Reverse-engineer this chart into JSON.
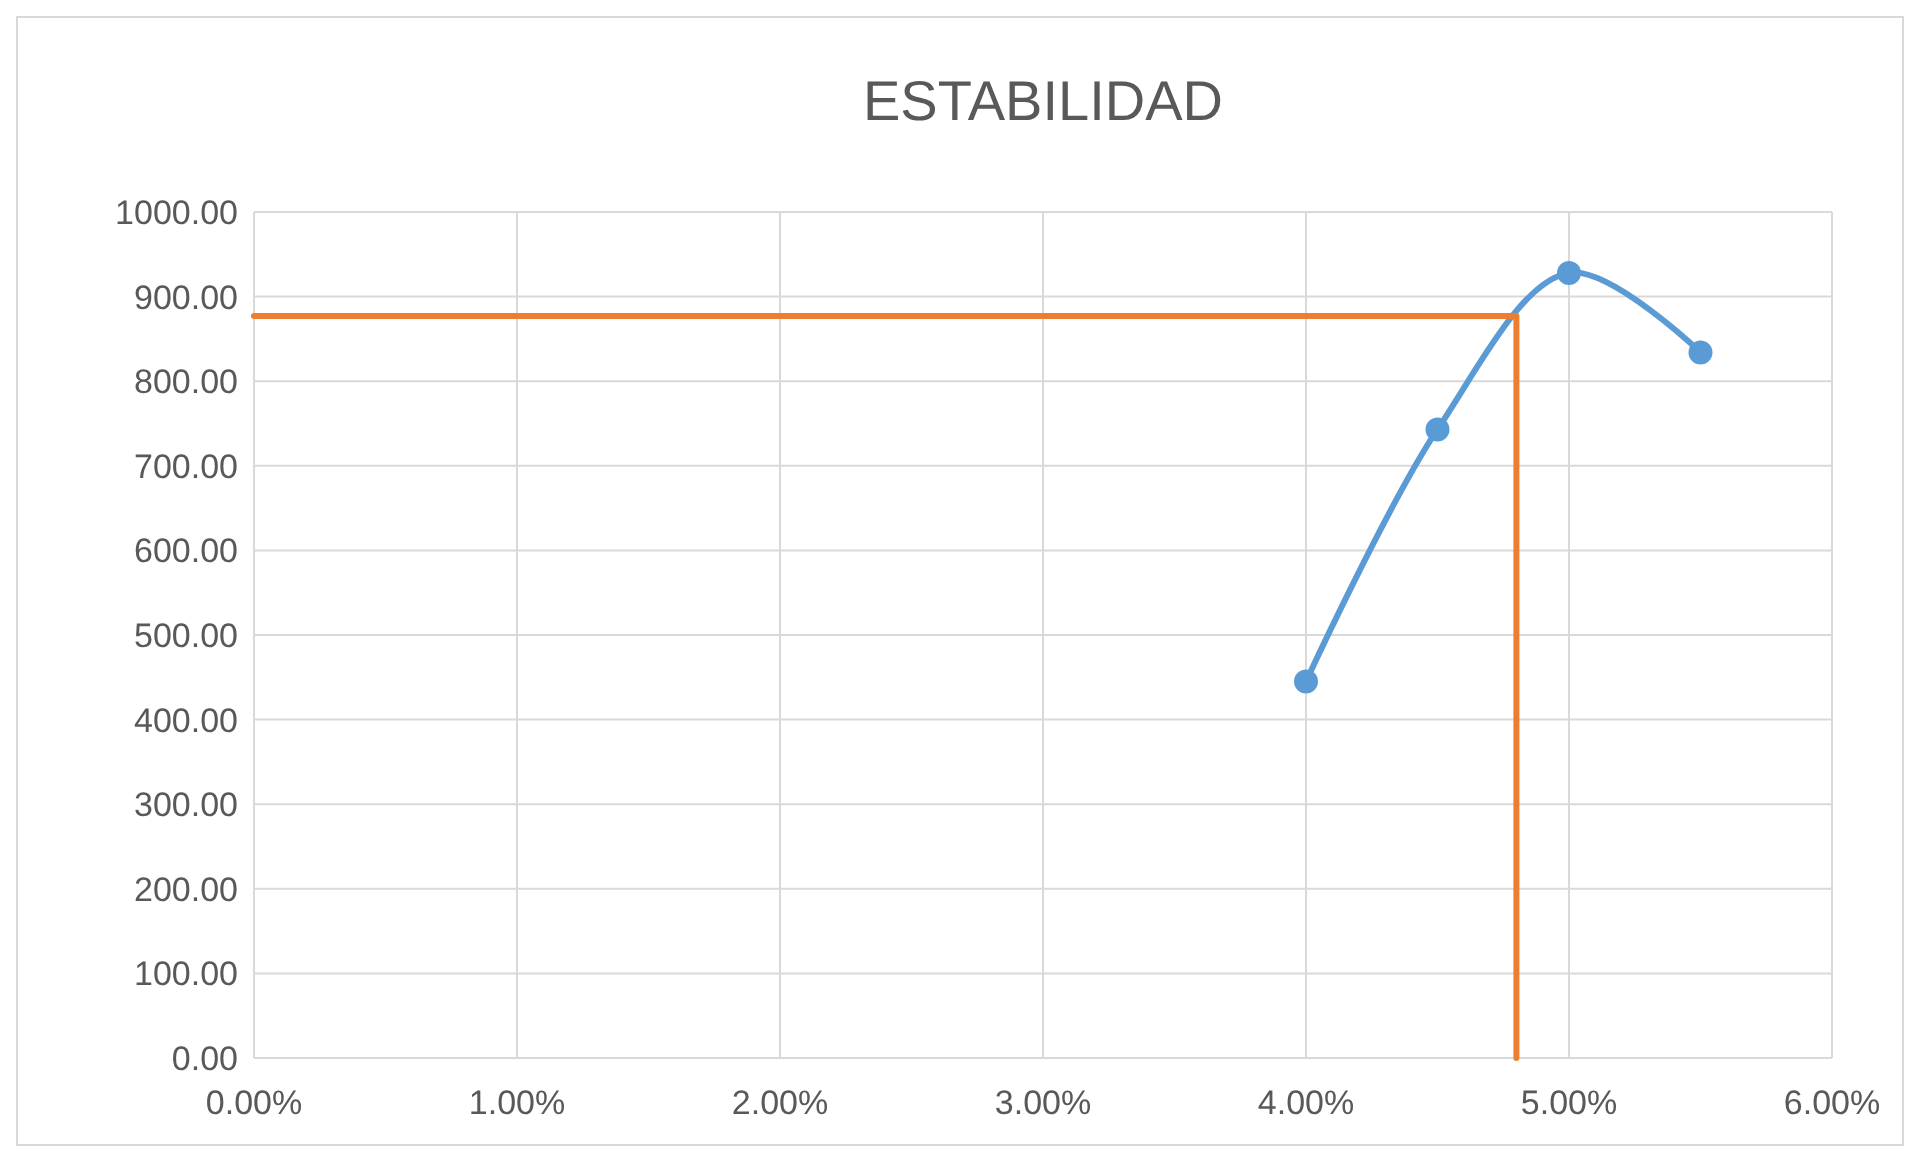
{
  "chart_data": {
    "type": "line",
    "title": "ESTABILIDAD",
    "xlim": [
      0,
      6
    ],
    "xticks": [
      {
        "value": 0,
        "label": "0.00%"
      },
      {
        "value": 1,
        "label": "1.00%"
      },
      {
        "value": 2,
        "label": "2.00%"
      },
      {
        "value": 3,
        "label": "3.00%"
      },
      {
        "value": 4,
        "label": "4.00%"
      },
      {
        "value": 5,
        "label": "5.00%"
      },
      {
        "value": 6,
        "label": "6.00%"
      }
    ],
    "ylim": [
      0,
      1000
    ],
    "yticks": [
      {
        "value": 0,
        "label": "0.00"
      },
      {
        "value": 100,
        "label": "100.00"
      },
      {
        "value": 200,
        "label": "200.00"
      },
      {
        "value": 300,
        "label": "300.00"
      },
      {
        "value": 400,
        "label": "400.00"
      },
      {
        "value": 500,
        "label": "500.00"
      },
      {
        "value": 600,
        "label": "600.00"
      },
      {
        "value": 700,
        "label": "700.00"
      },
      {
        "value": 800,
        "label": "800.00"
      },
      {
        "value": 900,
        "label": "900.00"
      },
      {
        "value": 1000,
        "label": "1000.00"
      }
    ],
    "grid": true,
    "line_style": "solid",
    "series": [
      {
        "color": "#5b9bd5",
        "x": [
          4.0,
          4.5,
          5.0,
          5.5
        ],
        "values": [
          445,
          743,
          928,
          834
        ],
        "marker": "circle"
      },
      {
        "color": "#ed7d31",
        "x": [
          0,
          4.8,
          4.8
        ],
        "values": [
          877,
          877,
          0
        ],
        "marker": "none"
      }
    ]
  }
}
